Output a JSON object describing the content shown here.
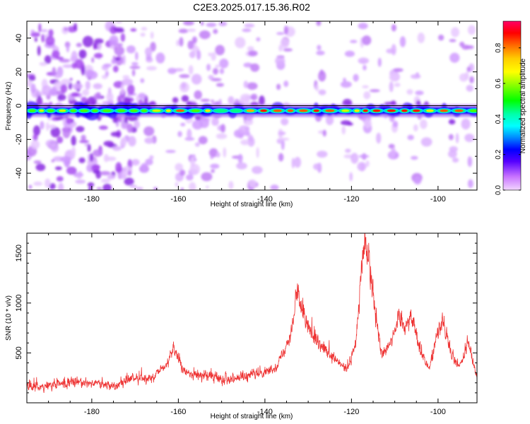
{
  "title": "C2E3.2025.017.15.36.R02",
  "chart_data": [
    {
      "type": "heatmap",
      "xlabel": "Height of straight line (km)",
      "ylabel": "Frequency (Hz)",
      "xlim": [
        -195,
        -91
      ],
      "ylim": [
        -50,
        50
      ],
      "xticks": [
        -180,
        -160,
        -140,
        -120,
        -100
      ],
      "yticks": [
        -40,
        -20,
        0,
        20,
        40
      ],
      "xtick_labels": [
        "-180",
        "-160",
        "-140",
        "-120",
        "-100"
      ],
      "ytick_labels": [
        "-40",
        "-20",
        "0",
        "20",
        "40"
      ],
      "signal_band": {
        "frequency_hz": -3,
        "bandwidth_hz": 3
      },
      "colorbar": {
        "label": "Normalized spectral amplitude",
        "range": [
          0,
          0.95
        ],
        "ticks": [
          0,
          0.2,
          0.4,
          0.6,
          0.8
        ],
        "tick_labels": [
          "0.0",
          "0.2",
          "0.4",
          "0.6",
          "0.8"
        ]
      }
    },
    {
      "type": "line",
      "xlabel": "Height of straight line (km)",
      "ylabel": "SNR (10 * v/v)",
      "xlim": [
        -195,
        -91
      ],
      "ylim": [
        0,
        1700
      ],
      "xticks": [
        -180,
        -160,
        -140,
        -120,
        -100
      ],
      "yticks": [
        500,
        1000,
        1500
      ],
      "xtick_labels": [
        "-180",
        "-160",
        "-140",
        "-120",
        "-100"
      ],
      "ytick_labels": [
        "500",
        "1000",
        "1500"
      ],
      "series_color": "#ee3333",
      "envelope": {
        "x": [
          -195,
          -190,
          -185,
          -181,
          -178,
          -175,
          -172,
          -169,
          -166,
          -163,
          -161,
          -159,
          -156,
          -153,
          -150,
          -147,
          -144,
          -141,
          -138,
          -136,
          -134,
          -132.5,
          -131,
          -129,
          -127,
          -125,
          -123,
          -121,
          -119,
          -117.5,
          -117,
          -116,
          -114.5,
          -113,
          -111,
          -109,
          -107.5,
          -106,
          -104,
          -102,
          -100.5,
          -99,
          -97,
          -95,
          -93,
          -91
        ],
        "y": [
          150,
          170,
          200,
          210,
          180,
          170,
          220,
          260,
          230,
          370,
          560,
          320,
          280,
          270,
          240,
          250,
          260,
          300,
          330,
          480,
          700,
          1100,
          900,
          640,
          560,
          470,
          400,
          330,
          600,
          1400,
          1600,
          1500,
          900,
          480,
          620,
          850,
          780,
          860,
          520,
          330,
          650,
          840,
          480,
          360,
          600,
          250
        ]
      }
    }
  ]
}
